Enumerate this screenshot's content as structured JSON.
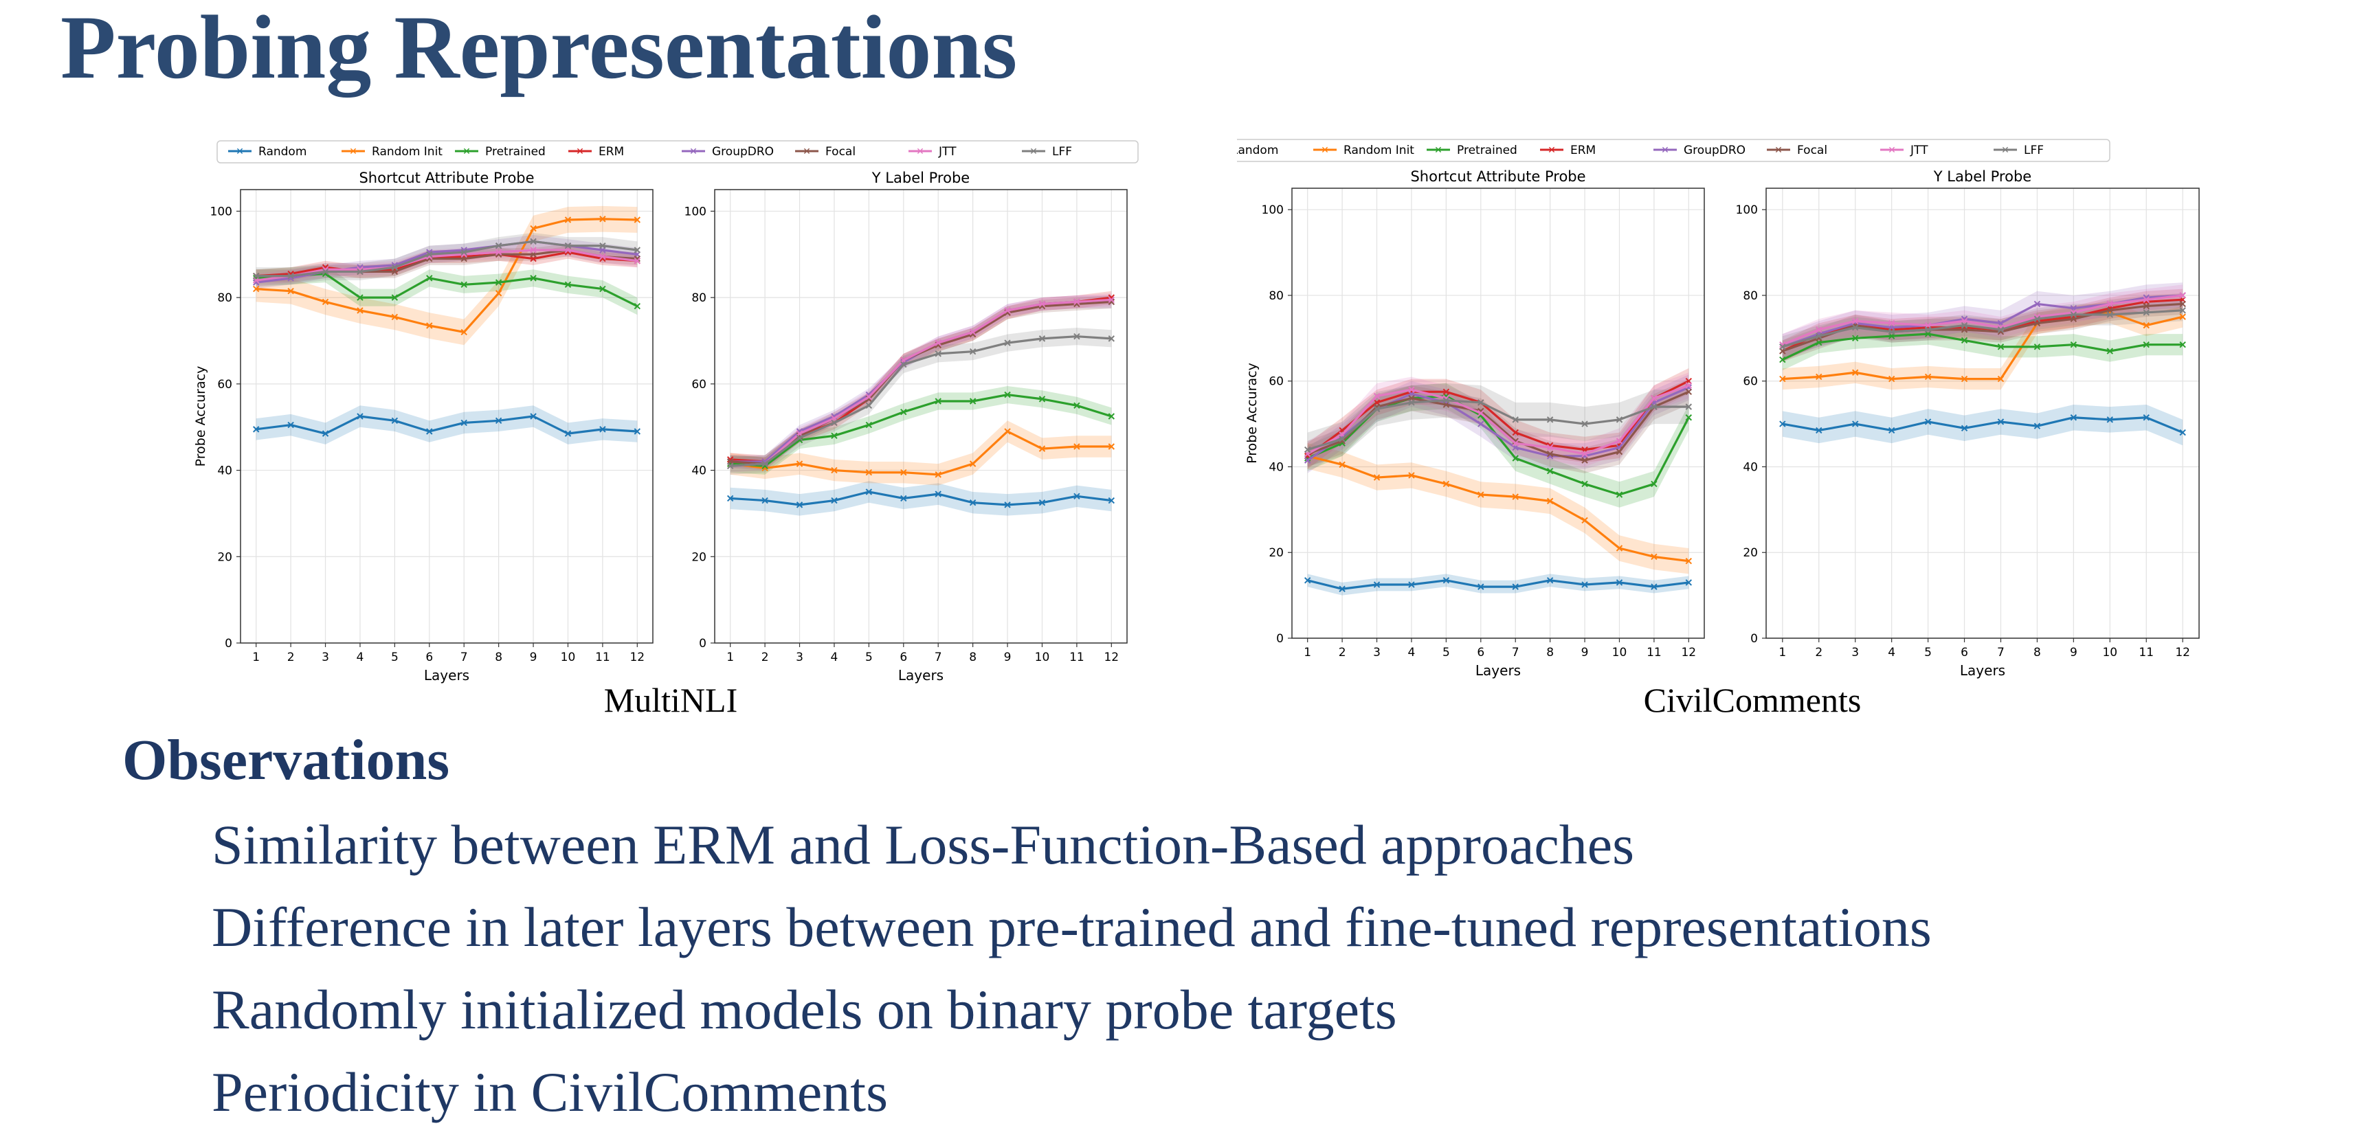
{
  "slide": {
    "title": "Probing Representations",
    "observations_heading": "Observations",
    "observations": [
      "Similarity between ERM and Loss-Function-Based approaches",
      "Difference in later layers between pre-trained and fine-tuned representations",
      "Randomly initialized models on binary probe targets",
      "Periodicity in CivilComments"
    ]
  },
  "figures": [
    {
      "caption": "MultiNLI"
    },
    {
      "caption": "CivilComments"
    }
  ],
  "legend": [
    {
      "name": "Random",
      "color": "#1f77b4"
    },
    {
      "name": "Random Init",
      "color": "#ff7f0e"
    },
    {
      "name": "Pretrained",
      "color": "#2ca02c"
    },
    {
      "name": "ERM",
      "color": "#d62728"
    },
    {
      "name": "GroupDRO",
      "color": "#9467bd"
    },
    {
      "name": "Focal",
      "color": "#8c564b"
    },
    {
      "name": "JTT",
      "color": "#e377c2"
    },
    {
      "name": "LFF",
      "color": "#7f7f7f"
    }
  ],
  "chart_data": [
    {
      "type": "line",
      "dataset": "MultiNLI",
      "title": "Shortcut Attribute Probe",
      "xlabel": "Layers",
      "ylabel": "Probe Accuracy",
      "x": [
        1,
        2,
        3,
        4,
        5,
        6,
        7,
        8,
        9,
        10,
        11,
        12
      ],
      "ylim": [
        0,
        105
      ],
      "yticks": [
        0,
        20,
        40,
        60,
        80,
        100
      ],
      "grid": true,
      "shaded_band": true,
      "series": [
        {
          "name": "Random",
          "values": [
            49.5,
            50.5,
            48.5,
            52.5,
            51.5,
            49,
            51,
            51.5,
            52.5,
            48.5,
            49.5,
            49
          ],
          "band": 2.5
        },
        {
          "name": "Random Init",
          "values": [
            82,
            81.5,
            79,
            77,
            75.5,
            73.5,
            72,
            81,
            96,
            98,
            98.2,
            98
          ],
          "band": 3
        },
        {
          "name": "Pretrained",
          "values": [
            84.5,
            85,
            85.5,
            80,
            80,
            84.5,
            83,
            83.5,
            84.5,
            83,
            82,
            78
          ],
          "band": 2
        },
        {
          "name": "ERM",
          "values": [
            85,
            85.5,
            87,
            86,
            86.5,
            89.5,
            89.5,
            90,
            89,
            90.5,
            89,
            88.5
          ],
          "band": 1.5
        },
        {
          "name": "GroupDRO",
          "values": [
            83.5,
            84.5,
            86,
            87,
            87.5,
            90.5,
            91,
            92,
            93,
            92,
            91,
            90
          ],
          "band": 1.5
        },
        {
          "name": "Focal",
          "values": [
            85,
            85,
            86,
            86,
            86,
            89,
            89,
            90,
            90,
            91,
            89.5,
            89
          ],
          "band": 1.5
        },
        {
          "name": "JTT",
          "values": [
            84,
            85,
            86.5,
            86.5,
            87,
            89.5,
            90,
            90.5,
            91,
            91,
            89.5,
            88.5
          ],
          "band": 1.5
        },
        {
          "name": "LFF",
          "values": [
            85,
            85,
            86,
            86,
            87,
            90,
            90.5,
            92,
            93,
            92,
            92,
            91
          ],
          "band": 2
        }
      ]
    },
    {
      "type": "line",
      "dataset": "MultiNLI",
      "title": "Y Label Probe",
      "xlabel": "Layers",
      "ylabel": "",
      "x": [
        1,
        2,
        3,
        4,
        5,
        6,
        7,
        8,
        9,
        10,
        11,
        12
      ],
      "ylim": [
        0,
        105
      ],
      "yticks": [
        0,
        20,
        40,
        60,
        80,
        100
      ],
      "grid": true,
      "shaded_band": true,
      "series": [
        {
          "name": "Random",
          "values": [
            33.5,
            33,
            32,
            33,
            35,
            33.5,
            34.5,
            32.5,
            32,
            32.5,
            34,
            33
          ],
          "band": 2.5
        },
        {
          "name": "Random Init",
          "values": [
            41.5,
            40.5,
            41.5,
            40,
            39.5,
            39.5,
            39,
            41.5,
            49,
            45,
            45.5,
            45.5
          ],
          "band": 2.5
        },
        {
          "name": "Pretrained",
          "values": [
            41.5,
            41,
            47,
            48,
            50.5,
            53.5,
            56,
            56,
            57.5,
            56.5,
            55,
            52.5
          ],
          "band": 2
        },
        {
          "name": "ERM",
          "values": [
            42.5,
            42,
            48,
            51,
            56.5,
            65.5,
            69,
            71.5,
            76.5,
            78.5,
            79,
            80
          ],
          "band": 1.5
        },
        {
          "name": "GroupDRO",
          "values": [
            42,
            42,
            49,
            52.5,
            57.5,
            65,
            69.5,
            72,
            77,
            78.5,
            79,
            79
          ],
          "band": 1.5
        },
        {
          "name": "Focal",
          "values": [
            42,
            41.5,
            48,
            52,
            56.5,
            65.5,
            69,
            71.5,
            76.5,
            78,
            78.5,
            79
          ],
          "band": 1.5
        },
        {
          "name": "JTT",
          "values": [
            41,
            41.5,
            48.5,
            52,
            57,
            65.5,
            69.5,
            72,
            77,
            78.5,
            79,
            79.5
          ],
          "band": 1.5
        },
        {
          "name": "LFF",
          "values": [
            41,
            41.5,
            47.5,
            51,
            55,
            64.5,
            67,
            67.5,
            69.5,
            70.5,
            71,
            70.5
          ],
          "band": 2
        }
      ]
    },
    {
      "type": "line",
      "dataset": "CivilComments",
      "title": "Shortcut Attribute Probe",
      "xlabel": "Layers",
      "ylabel": "Probe Accuracy",
      "x": [
        1,
        2,
        3,
        4,
        5,
        6,
        7,
        8,
        9,
        10,
        11,
        12
      ],
      "ylim": [
        0,
        105
      ],
      "yticks": [
        0,
        20,
        40,
        60,
        80,
        100
      ],
      "grid": true,
      "shaded_band": true,
      "series": [
        {
          "name": "Random",
          "values": [
            13.5,
            11.5,
            12.5,
            12.5,
            13.5,
            12,
            12,
            13.5,
            12.5,
            13,
            12,
            13
          ],
          "band": 1.5
        },
        {
          "name": "Random Init",
          "values": [
            42.5,
            40.5,
            37.5,
            38,
            36,
            33.5,
            33,
            32,
            27.5,
            21,
            19,
            18
          ],
          "band": 3
        },
        {
          "name": "Pretrained",
          "values": [
            42,
            45.5,
            53.5,
            56,
            56.5,
            52,
            42,
            39,
            36,
            33.5,
            36,
            51.5
          ],
          "band": 3
        },
        {
          "name": "ERM",
          "values": [
            42.5,
            48.5,
            55,
            57.5,
            57.5,
            55,
            48,
            45,
            44,
            45,
            56,
            60
          ],
          "band": 3
        },
        {
          "name": "GroupDRO",
          "values": [
            41.5,
            47,
            53.5,
            57,
            55,
            50,
            44.5,
            42.5,
            42.5,
            44.5,
            55,
            58.5
          ],
          "band": 3
        },
        {
          "name": "Focal",
          "values": [
            43,
            46,
            54,
            56,
            54.5,
            53,
            46,
            43,
            41.5,
            43.5,
            54,
            57.5
          ],
          "band": 3
        },
        {
          "name": "JTT",
          "values": [
            43,
            47.5,
            56.5,
            58,
            56,
            52.5,
            45.5,
            44.5,
            43,
            46,
            56,
            59
          ],
          "band": 3
        },
        {
          "name": "LFF",
          "values": [
            44,
            46.5,
            53.5,
            55,
            55.5,
            55,
            51,
            51,
            50,
            51,
            54,
            54
          ],
          "band": 4
        }
      ]
    },
    {
      "type": "line",
      "dataset": "CivilComments",
      "title": "Y Label Probe",
      "xlabel": "Layers",
      "ylabel": "",
      "x": [
        1,
        2,
        3,
        4,
        5,
        6,
        7,
        8,
        9,
        10,
        11,
        12
      ],
      "ylim": [
        0,
        105
      ],
      "yticks": [
        0,
        20,
        40,
        60,
        80,
        100
      ],
      "grid": true,
      "shaded_band": true,
      "series": [
        {
          "name": "Random",
          "values": [
            50,
            48.5,
            50,
            48.5,
            50.5,
            49,
            50.5,
            49.5,
            51.5,
            51,
            51.5,
            48
          ],
          "band": 3
        },
        {
          "name": "Random Init",
          "values": [
            60.5,
            61,
            62,
            60.5,
            61,
            60.5,
            60.5,
            73.5,
            75,
            76,
            73,
            75
          ],
          "band": 2.5
        },
        {
          "name": "Pretrained",
          "values": [
            65,
            69,
            70,
            70.5,
            71,
            69.5,
            68,
            68,
            68.5,
            67,
            68.5,
            68.5
          ],
          "band": 2.5
        },
        {
          "name": "ERM",
          "values": [
            67,
            71,
            73,
            72,
            72.5,
            72.5,
            72,
            74,
            75,
            77,
            78.5,
            79
          ],
          "band": 2.5
        },
        {
          "name": "GroupDRO",
          "values": [
            68,
            71,
            73.5,
            72.5,
            73,
            74.5,
            73.5,
            78,
            77,
            78,
            79.5,
            80
          ],
          "band": 3
        },
        {
          "name": "Focal",
          "values": [
            67,
            70,
            73,
            71.5,
            72,
            72,
            71.5,
            73.5,
            74.5,
            76.5,
            77.5,
            78
          ],
          "band": 2.5
        },
        {
          "name": "JTT",
          "values": [
            68.5,
            72,
            74,
            73.5,
            73,
            74,
            72.5,
            75,
            76,
            78,
            79,
            80
          ],
          "band": 2.5
        },
        {
          "name": "LFF",
          "values": [
            68,
            70.5,
            72.5,
            71.5,
            72,
            73,
            72,
            74.5,
            75.5,
            75.5,
            76,
            76.5
          ],
          "band": 2.5
        }
      ]
    }
  ]
}
